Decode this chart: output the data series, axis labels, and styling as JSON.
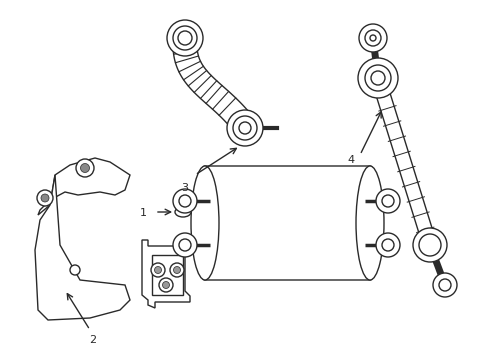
{
  "background_color": "#ffffff",
  "line_color": "#2a2a2a",
  "line_width": 1.0,
  "figsize": [
    4.9,
    3.6
  ],
  "dpi": 100
}
